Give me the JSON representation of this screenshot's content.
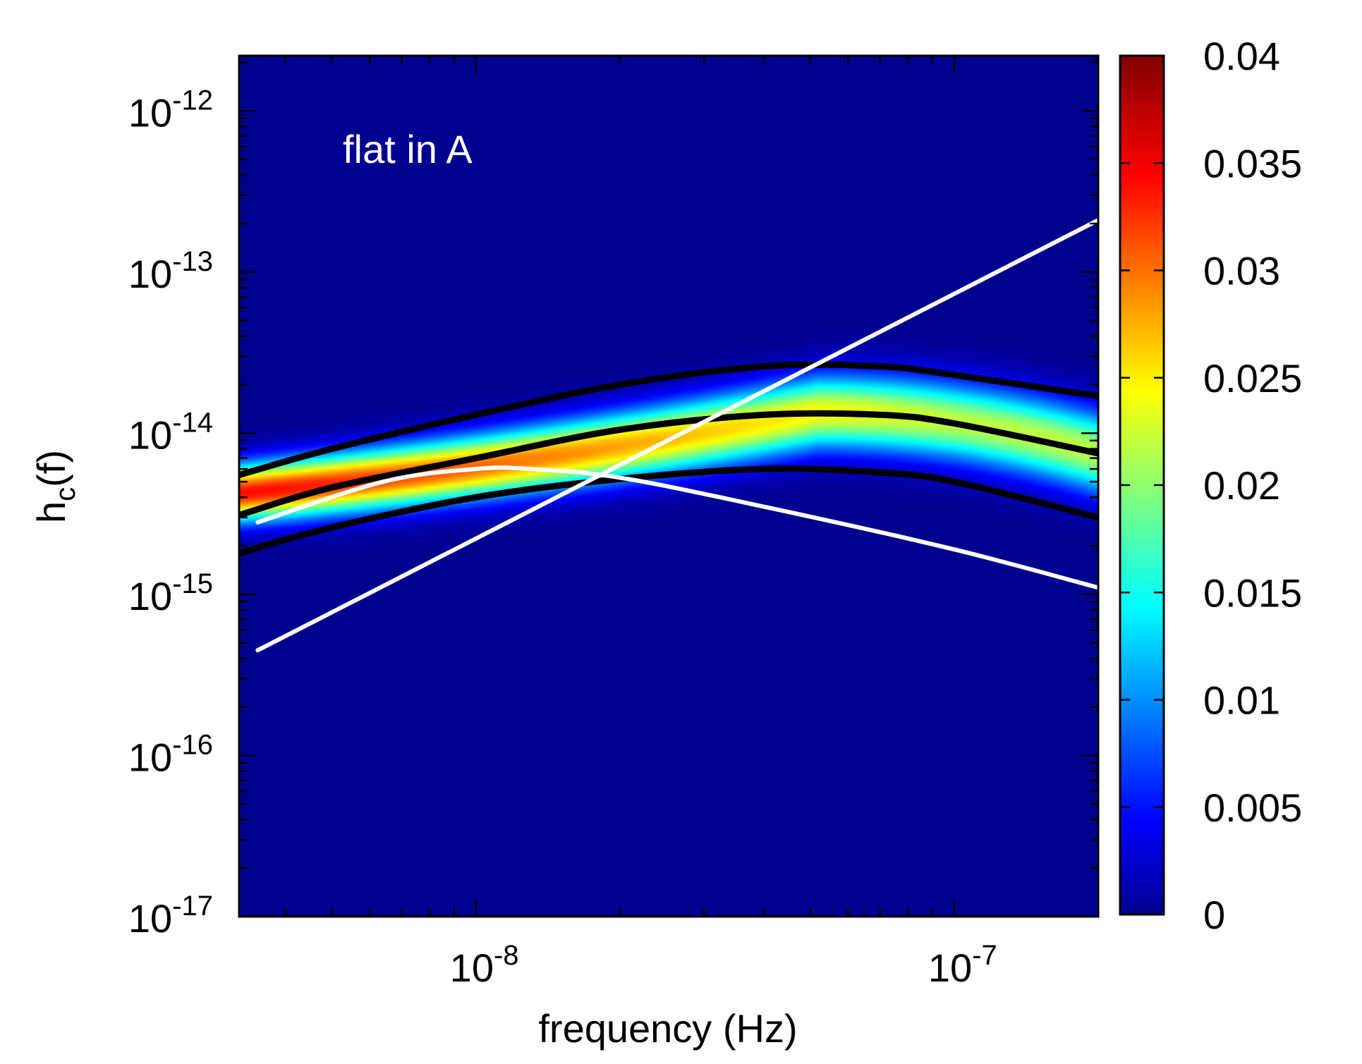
{
  "chart_data": {
    "type": "heatmap",
    "annotation": "flat in A",
    "xlabel": "frequency (Hz)",
    "ylabel": "h",
    "ylabel_sub": "c",
    "ylabel_tail": "(f)",
    "x_scale": "log",
    "y_scale": "log",
    "xlim": [
      3.2e-09,
      2e-07
    ],
    "ylim": [
      1e-17,
      2.2e-12
    ],
    "x_ticks": [
      {
        "value": 1e-08,
        "base": "10",
        "exp": "-8"
      },
      {
        "value": 1e-07,
        "base": "10",
        "exp": "-7"
      }
    ],
    "y_ticks": [
      {
        "value": 1e-12,
        "base": "10",
        "exp": "-12"
      },
      {
        "value": 1e-13,
        "base": "10",
        "exp": "-13"
      },
      {
        "value": 1e-14,
        "base": "10",
        "exp": "-14"
      },
      {
        "value": 1e-15,
        "base": "10",
        "exp": "-15"
      },
      {
        "value": 1e-16,
        "base": "10",
        "exp": "-16"
      },
      {
        "value": 1e-17,
        "base": "10",
        "exp": "-17"
      }
    ],
    "colorbar": {
      "range": [
        0,
        0.04
      ],
      "ticks": [
        "0",
        "0.005",
        "0.01",
        "0.015",
        "0.02",
        "0.025",
        "0.03",
        "0.035",
        "0.04"
      ],
      "colormap": "jet"
    },
    "series": [
      {
        "name": "upper contour",
        "color": "#000000",
        "x": [
          3.2e-09,
          5e-09,
          1e-08,
          2e-08,
          4e-08,
          7e-08,
          1e-07,
          2e-07
        ],
        "y": [
          5.5e-15,
          8e-15,
          1.3e-14,
          2e-14,
          2.6e-14,
          2.6e-14,
          2.3e-14,
          1.7e-14
        ]
      },
      {
        "name": "median contour",
        "color": "#000000",
        "x": [
          3.2e-09,
          5e-09,
          1e-08,
          2e-08,
          4e-08,
          7e-08,
          1e-07,
          2e-07
        ],
        "y": [
          3.1e-15,
          4.6e-15,
          7e-15,
          1.05e-14,
          1.3e-14,
          1.3e-14,
          1.15e-14,
          7.5e-15
        ]
      },
      {
        "name": "lower contour",
        "color": "#000000",
        "x": [
          3.2e-09,
          5e-09,
          1e-08,
          2e-08,
          4e-08,
          7e-08,
          1e-07,
          2e-07
        ],
        "y": [
          1.8e-15,
          2.6e-15,
          4e-15,
          5.2e-15,
          6e-15,
          5.7e-15,
          5e-15,
          3e-15
        ]
      },
      {
        "name": "white curve",
        "color": "#ffffff",
        "x": [
          3.5e-09,
          6.4e-09,
          1e-08,
          1.3e-08,
          2e-08,
          4e-08,
          1e-07,
          2e-07
        ],
        "y": [
          2.8e-15,
          5e-15,
          6e-15,
          6e-15,
          5.3e-15,
          3.5e-15,
          1.9e-15,
          1.1e-15
        ]
      },
      {
        "name": "white power law",
        "color": "#ffffff",
        "x": [
          3.5e-09,
          2e-07
        ],
        "y": [
          4.5e-16,
          2.1e-13
        ]
      }
    ],
    "band": {
      "peak_x": 5.2e-08,
      "peak_y": 1.35e-14,
      "high_freq_y": 7.5e-15,
      "low_freq_slope": 0.56,
      "upper_ratio": 1.95,
      "lower_ratio": 0.5,
      "peak_value_low_freq": 0.034,
      "peak_value_high_freq": 0.022
    }
  }
}
